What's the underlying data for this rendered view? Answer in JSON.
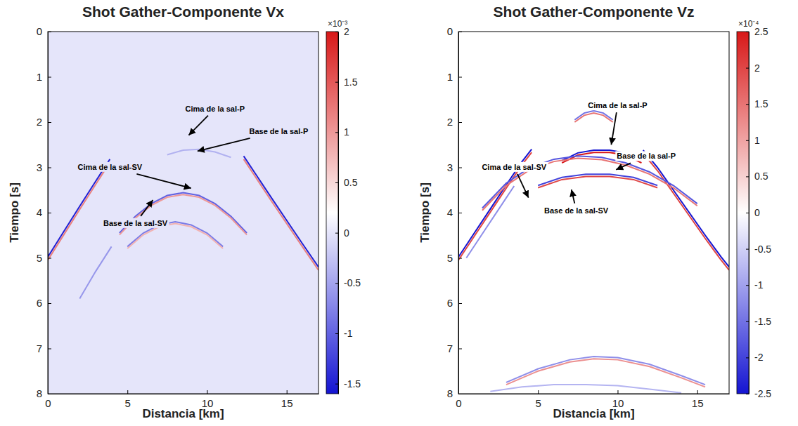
{
  "chart_data": [
    {
      "type": "line",
      "title": "Shot Gather-Componente Vx",
      "x_label": "Distancia [km]",
      "y_label": "Tiempo [s]",
      "xlim": [
        0,
        17
      ],
      "ylim": [
        8,
        0
      ],
      "xticks": [
        0,
        5,
        10,
        15
      ],
      "yticks": [
        0,
        1,
        2,
        3,
        4,
        5,
        6,
        7,
        8
      ],
      "background_value": 0,
      "colorbar": {
        "range": [
          -1.6,
          2
        ],
        "ticks": [
          -1.5,
          -1,
          -0.5,
          0,
          0.5,
          1,
          1.5,
          2
        ],
        "multiplier": "×10⁻³"
      },
      "series": [
        {
          "x": [
            0,
            1,
            2,
            3,
            3.9
          ],
          "values": [
            4.98,
            4.42,
            3.86,
            3.31,
            2.82
          ],
          "amplitude": -1.5
        },
        {
          "x": [
            0,
            1,
            2,
            3,
            3.9
          ],
          "values": [
            5.05,
            4.49,
            3.93,
            3.38,
            2.89
          ],
          "amplitude": 1.2
        },
        {
          "x": [
            12.3,
            13,
            14,
            15,
            16,
            17
          ],
          "values": [
            2.75,
            3.12,
            3.65,
            4.17,
            4.69,
            5.2
          ],
          "amplitude": -1.5
        },
        {
          "x": [
            12.3,
            13,
            14,
            15,
            16,
            17
          ],
          "values": [
            2.82,
            3.19,
            3.72,
            4.24,
            4.76,
            5.27
          ],
          "amplitude": 1.2
        },
        {
          "x": [
            4.5,
            5.5,
            6.5,
            7.5,
            8.5,
            9.5,
            10.5,
            11.5,
            12.5
          ],
          "values": [
            4.45,
            4.08,
            3.8,
            3.62,
            3.56,
            3.62,
            3.8,
            4.08,
            4.45
          ],
          "amplitude": -1.0
        },
        {
          "x": [
            4.5,
            5.5,
            6.5,
            7.5,
            8.5,
            9.5,
            10.5,
            11.5,
            12.5
          ],
          "values": [
            4.49,
            4.12,
            3.84,
            3.66,
            3.6,
            3.66,
            3.84,
            4.12,
            4.49
          ],
          "amplitude": 1.0
        },
        {
          "x": [
            5,
            6,
            7,
            8,
            9,
            10,
            11
          ],
          "values": [
            4.75,
            4.45,
            4.27,
            4.2,
            4.27,
            4.45,
            4.75
          ],
          "amplitude": -0.8
        },
        {
          "x": [
            5,
            6,
            7,
            8,
            9,
            10,
            11
          ],
          "values": [
            4.79,
            4.49,
            4.31,
            4.24,
            4.31,
            4.49,
            4.79
          ],
          "amplitude": 0.8
        },
        {
          "x": [
            2,
            3,
            4
          ],
          "values": [
            5.9,
            5.3,
            4.75
          ],
          "amplitude": -0.6
        },
        {
          "x": [
            7.5,
            8.5,
            9.5,
            10.5,
            11.5
          ],
          "values": [
            2.72,
            2.62,
            2.6,
            2.66,
            2.78
          ],
          "amplitude": -0.4
        }
      ],
      "annotations": [
        {
          "text": "Cima de la sal-P",
          "x": 8.85,
          "y": 2.29,
          "text_x": 10.5,
          "text_y": 1.7
        },
        {
          "text": "Base de la sal-P",
          "x": 9.4,
          "y": 2.64,
          "text_x": 14.5,
          "text_y": 2.2
        },
        {
          "text": "Cima de la sal-SV",
          "x": 9.0,
          "y": 3.46,
          "text_x": 3.9,
          "text_y": 2.99
        },
        {
          "text": "Base de la sal-SV",
          "x": 6.6,
          "y": 3.72,
          "text_x": 5.5,
          "text_y": 4.23
        }
      ]
    },
    {
      "type": "line",
      "title": "Shot Gather-Componente Vz",
      "x_label": "Distancia [km]",
      "y_label": "Tiempo [s]",
      "xlim": [
        0,
        17
      ],
      "ylim": [
        8,
        0
      ],
      "xticks": [
        0,
        5,
        10,
        15
      ],
      "yticks": [
        0,
        1,
        2,
        3,
        4,
        5,
        6,
        7,
        8
      ],
      "background_value": 0,
      "colorbar": {
        "range": [
          -2.5,
          2.5
        ],
        "ticks": [
          -2.5,
          -2,
          -1.5,
          -1,
          -0.5,
          0,
          0.5,
          1,
          1.5,
          2,
          2.5
        ],
        "multiplier": "×10⁻⁴"
      },
      "series": [
        {
          "x": [
            0,
            1,
            2,
            3,
            4,
            4.6
          ],
          "values": [
            4.98,
            4.45,
            3.92,
            3.39,
            2.87,
            2.6
          ],
          "amplitude": -2.5
        },
        {
          "x": [
            0,
            1,
            2,
            3,
            4,
            4.6
          ],
          "values": [
            5.05,
            4.52,
            3.99,
            3.46,
            2.94,
            2.67
          ],
          "amplitude": 2.0
        },
        {
          "x": [
            0.5,
            1.5,
            2.5,
            3.5
          ],
          "values": [
            5.0,
            4.47,
            3.94,
            3.41
          ],
          "amplitude": -1.2
        },
        {
          "x": [
            11.6,
            12.5,
            13.5,
            14.5,
            15.5,
            16.5,
            17
          ],
          "values": [
            2.62,
            3.0,
            3.5,
            4.0,
            4.5,
            4.98,
            5.2
          ],
          "amplitude": -2.5
        },
        {
          "x": [
            11.6,
            12.5,
            13.5,
            14.5,
            15.5,
            16.5,
            17
          ],
          "values": [
            2.69,
            3.07,
            3.57,
            4.07,
            4.57,
            5.05,
            5.27
          ],
          "amplitude": 2.0
        },
        {
          "x": [
            7.3,
            7.9,
            8.5,
            9.1,
            9.7
          ],
          "values": [
            1.95,
            1.8,
            1.75,
            1.8,
            1.95
          ],
          "amplitude": -1.5
        },
        {
          "x": [
            7.3,
            7.9,
            8.5,
            9.1,
            9.7
          ],
          "values": [
            2.0,
            1.85,
            1.8,
            1.85,
            2.0
          ],
          "amplitude": 1.5
        },
        {
          "x": [
            6.5,
            7.5,
            8.5,
            9.5,
            10.5,
            11.5
          ],
          "values": [
            2.85,
            2.68,
            2.62,
            2.62,
            2.68,
            2.85
          ],
          "amplitude": -2.5
        },
        {
          "x": [
            6.5,
            7.5,
            8.5,
            9.5,
            10.5,
            11.5
          ],
          "values": [
            2.9,
            2.73,
            2.67,
            2.67,
            2.73,
            2.9
          ],
          "amplitude": 2.5
        },
        {
          "x": [
            1.5,
            3,
            4.5,
            6,
            7.5,
            9,
            10.5,
            12,
            13.5,
            15
          ],
          "values": [
            3.9,
            3.35,
            3.0,
            2.82,
            2.75,
            2.78,
            2.9,
            3.1,
            3.4,
            3.8
          ],
          "amplitude": -1.8
        },
        {
          "x": [
            1.5,
            3,
            4.5,
            6,
            7.5,
            9,
            10.5,
            12,
            13.5,
            15
          ],
          "values": [
            3.95,
            3.4,
            3.05,
            2.87,
            2.8,
            2.83,
            2.95,
            3.15,
            3.45,
            3.85
          ],
          "amplitude": 1.5
        },
        {
          "x": [
            5,
            6.5,
            8,
            9.5,
            11,
            12.5
          ],
          "values": [
            3.4,
            3.22,
            3.15,
            3.15,
            3.22,
            3.4
          ],
          "amplitude": -2.0
        },
        {
          "x": [
            5,
            6.5,
            8,
            9.5,
            11,
            12.5
          ],
          "values": [
            3.45,
            3.27,
            3.2,
            3.2,
            3.27,
            3.45
          ],
          "amplitude": 2.0
        },
        {
          "x": [
            3,
            5,
            7,
            8.5,
            10,
            12,
            14,
            15.5
          ],
          "values": [
            7.75,
            7.45,
            7.25,
            7.18,
            7.2,
            7.35,
            7.6,
            7.8
          ],
          "amplitude": -1.2
        },
        {
          "x": [
            3,
            5,
            7,
            8.5,
            10,
            12,
            14,
            15.5
          ],
          "values": [
            7.8,
            7.5,
            7.3,
            7.23,
            7.25,
            7.4,
            7.65,
            7.85
          ],
          "amplitude": 1.2
        },
        {
          "x": [
            2,
            4,
            6,
            8,
            10,
            12,
            14
          ],
          "values": [
            7.95,
            7.85,
            7.8,
            7.8,
            7.82,
            7.9,
            7.98
          ],
          "amplitude": -0.8
        }
      ],
      "annotations": [
        {
          "text": "Cima de la sal-P",
          "x": 9.6,
          "y": 2.5,
          "text_x": 10.0,
          "text_y": 1.63
        },
        {
          "text": "Base de la sal-P",
          "x": 9.9,
          "y": 3.05,
          "text_x": 11.8,
          "text_y": 2.75
        },
        {
          "text": "Cima de la sal-SV",
          "x": 4.4,
          "y": 3.67,
          "text_x": 3.5,
          "text_y": 2.99
        },
        {
          "text": "Base de la sal-SV",
          "x": 7.1,
          "y": 3.49,
          "text_x": 7.4,
          "text_y": 3.95
        }
      ]
    }
  ]
}
